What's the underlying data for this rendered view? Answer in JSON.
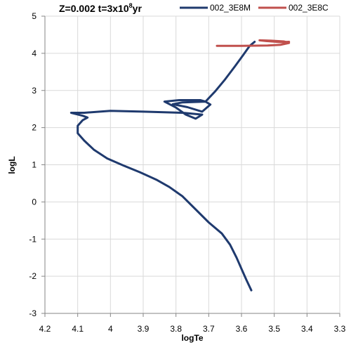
{
  "chart_data": {
    "type": "line",
    "title": "Z=0.002 t=3x10",
    "title_superscript": "8",
    "title_suffix": "yr",
    "xlabel": "logTe",
    "ylabel": "logL",
    "xlim": [
      4.2,
      3.3
    ],
    "ylim": [
      -3,
      5
    ],
    "x_reversed": true,
    "grid": true,
    "legend_position": "top-right",
    "x_ticks": [
      "4.2",
      "4.1",
      "4",
      "3.9",
      "3.8",
      "3.7",
      "3.6",
      "3.5",
      "3.4",
      "3.3"
    ],
    "y_ticks": [
      "-3",
      "-2",
      "-1",
      "0",
      "1",
      "2",
      "3",
      "4",
      "5"
    ],
    "series": [
      {
        "name": "002_3E8M",
        "color": "#1f3a6e",
        "points": [
          [
            3.57,
            -2.38
          ],
          [
            3.585,
            -2.1
          ],
          [
            3.6,
            -1.8
          ],
          [
            3.615,
            -1.5
          ],
          [
            3.635,
            -1.15
          ],
          [
            3.66,
            -0.85
          ],
          [
            3.7,
            -0.55
          ],
          [
            3.74,
            -0.2
          ],
          [
            3.78,
            0.15
          ],
          [
            3.82,
            0.4
          ],
          [
            3.86,
            0.6
          ],
          [
            3.91,
            0.8
          ],
          [
            3.96,
            0.98
          ],
          [
            4.01,
            1.17
          ],
          [
            4.05,
            1.4
          ],
          [
            4.08,
            1.65
          ],
          [
            4.1,
            1.85
          ],
          [
            4.1,
            2.05
          ],
          [
            4.085,
            2.2
          ],
          [
            4.07,
            2.27
          ],
          [
            4.085,
            2.32
          ],
          [
            4.12,
            2.4
          ],
          [
            4.08,
            2.4
          ],
          [
            4.0,
            2.45
          ],
          [
            3.9,
            2.43
          ],
          [
            3.78,
            2.4
          ],
          [
            3.72,
            2.35
          ],
          [
            3.74,
            2.24
          ],
          [
            3.77,
            2.35
          ],
          [
            3.8,
            2.54
          ],
          [
            3.835,
            2.7
          ],
          [
            3.79,
            2.74
          ],
          [
            3.725,
            2.74
          ],
          [
            3.71,
            2.7
          ],
          [
            3.695,
            2.62
          ],
          [
            3.72,
            2.43
          ],
          [
            3.765,
            2.55
          ],
          [
            3.81,
            2.63
          ],
          [
            3.78,
            2.68
          ],
          [
            3.71,
            2.7
          ],
          [
            3.68,
            2.98
          ],
          [
            3.65,
            3.3
          ],
          [
            3.62,
            3.65
          ],
          [
            3.595,
            3.95
          ],
          [
            3.575,
            4.2
          ],
          [
            3.56,
            4.31
          ]
        ]
      },
      {
        "name": "002_3E8C",
        "color": "#c0504d",
        "points": [
          [
            3.675,
            4.2
          ],
          [
            3.6,
            4.2
          ],
          [
            3.52,
            4.21
          ],
          [
            3.48,
            4.23
          ],
          [
            3.455,
            4.28
          ],
          [
            3.47,
            4.32
          ],
          [
            3.51,
            4.34
          ],
          [
            3.545,
            4.35
          ],
          [
            3.525,
            4.33
          ],
          [
            3.48,
            4.3
          ],
          [
            3.455,
            4.31
          ]
        ]
      }
    ]
  }
}
